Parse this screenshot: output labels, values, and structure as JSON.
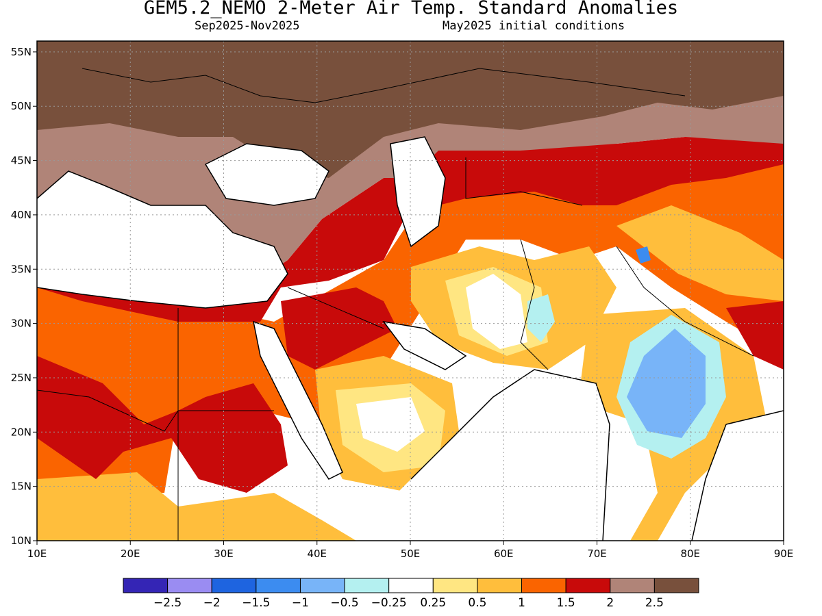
{
  "title": "GEM5.2_NEMO 2-Meter Air Temp. Standard Anomalies",
  "period": "Sep2025-Nov2025",
  "init": "May2025 initial conditions",
  "map": {
    "lon_range": [
      10,
      90
    ],
    "lat_range": [
      10,
      56
    ],
    "lon_ticks": [
      "10E",
      "20E",
      "30E",
      "40E",
      "50E",
      "60E",
      "70E",
      "80E",
      "90E"
    ],
    "lat_ticks": [
      "10N",
      "15N",
      "20N",
      "25N",
      "30N",
      "35N",
      "40N",
      "45N",
      "50N",
      "55N"
    ],
    "grid": true
  },
  "colorbar": {
    "colors": [
      "#3425b5",
      "#9a8cf2",
      "#1e64e0",
      "#3c8cf0",
      "#78b4f8",
      "#b4f0f0",
      "#ffffff",
      "#ffe682",
      "#ffbe3c",
      "#fa6400",
      "#c80a0a",
      "#b08478",
      "#78503c"
    ],
    "labels": [
      "-2.5",
      "-2",
      "-1.5",
      "-1",
      "-0.5",
      "-0.25",
      "0.25",
      "0.5",
      "1",
      "1.5",
      "2",
      "2.5"
    ]
  }
}
